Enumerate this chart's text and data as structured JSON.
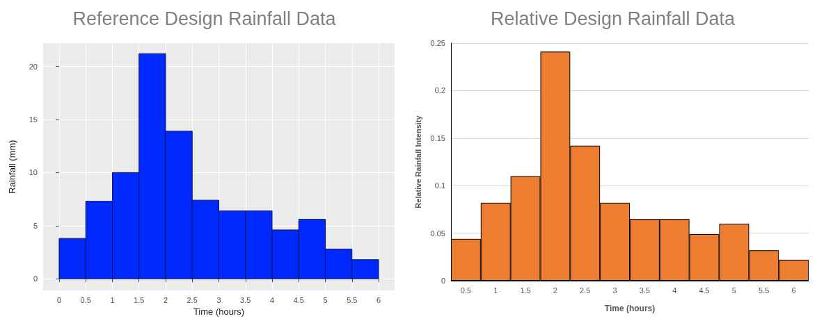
{
  "chart_data": [
    {
      "type": "histogram",
      "title": "Reference Design Rainfall Data",
      "xlabel": "Time (hours)",
      "ylabel": "Rainfall (mm)",
      "bins": [
        0,
        0.5,
        1,
        1.5,
        2,
        2.5,
        3,
        3.5,
        4,
        4.5,
        5,
        5.5,
        6
      ],
      "values": [
        3.8,
        7.3,
        10,
        21.2,
        13.9,
        7.4,
        6.4,
        6.4,
        4.6,
        5.6,
        2.8,
        1.8
      ],
      "color": "#0029ff",
      "xlim": [
        -0.3,
        6.3
      ],
      "xticks": [
        0,
        0.5,
        1,
        1.5,
        2,
        2.5,
        3,
        3.5,
        4,
        4.5,
        5,
        5.5,
        6
      ],
      "ylim": [
        -1.1,
        22.2
      ],
      "yticks": [
        0,
        5,
        10,
        15,
        20
      ],
      "grid": true
    },
    {
      "type": "bar",
      "title": "Relative Design Rainfall Data",
      "xlabel": "Time (hours)",
      "ylabel": "Relative Rainfall Intensity",
      "categories": [
        "0.5",
        "1",
        "1.5",
        "2",
        "2.5",
        "3",
        "3.5",
        "4",
        "4.5",
        "5",
        "5.5",
        "6"
      ],
      "values": [
        0.044,
        0.082,
        0.11,
        0.241,
        0.142,
        0.082,
        0.065,
        0.065,
        0.049,
        0.06,
        0.032,
        0.022
      ],
      "color": "#ed7d31",
      "ylim": [
        0,
        0.25
      ],
      "yticks": [
        0,
        0.05,
        0.1,
        0.15,
        0.2,
        0.25
      ],
      "grid": "y"
    }
  ]
}
